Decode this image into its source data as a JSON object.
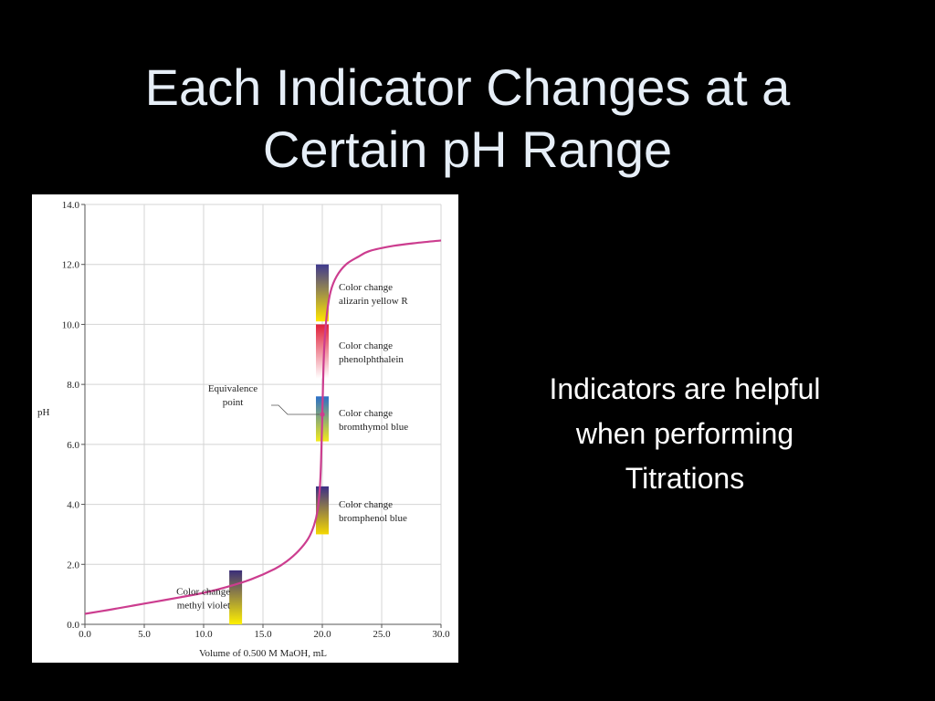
{
  "slide": {
    "title_line1": "Each Indicator Changes at a",
    "title_line2": "Certain pH Range",
    "caption_line1": "Indicators are helpful",
    "caption_line2": "when performing",
    "caption_line3": "Titrations",
    "background": "#000000",
    "title_color": "#e6eef7"
  },
  "chart_data": {
    "type": "line",
    "title": "",
    "xlabel": "Volume of 0.500 M MaOH, mL",
    "ylabel": "pH",
    "xlim": [
      0,
      30
    ],
    "ylim": [
      0,
      14
    ],
    "x_ticks": [
      "0.0",
      "5.0",
      "10.0",
      "15.0",
      "20.0",
      "25.0",
      "30.0"
    ],
    "y_ticks": [
      "0.0",
      "2.0",
      "4.0",
      "6.0",
      "8.0",
      "10.0",
      "12.0",
      "14.0"
    ],
    "grid": true,
    "curve_color": "#cc3d8f",
    "series": [
      {
        "x": [
          0,
          2,
          4,
          6,
          8,
          10,
          12,
          14,
          16,
          17,
          18,
          18.8,
          19.3,
          19.6,
          19.8,
          19.9,
          20.0,
          20.1,
          20.2,
          20.4,
          20.7,
          21.2,
          22,
          23,
          24,
          26,
          28,
          30
        ],
        "y": [
          0.35,
          0.48,
          0.62,
          0.76,
          0.9,
          1.05,
          1.25,
          1.5,
          1.85,
          2.1,
          2.45,
          2.85,
          3.3,
          3.8,
          4.6,
          5.5,
          7.0,
          8.6,
          9.5,
          10.4,
          11.1,
          11.6,
          12.0,
          12.25,
          12.45,
          12.62,
          12.72,
          12.8
        ]
      }
    ],
    "equivalence_point": {
      "x": 20.0,
      "y": 7.0,
      "label_line1": "Equivalence",
      "label_line2": "point"
    },
    "indicators": [
      {
        "label_line1": "Color change",
        "label_line2": "alizarin yellow R",
        "x": 20.0,
        "ph_low": 10.1,
        "ph_high": 12.0,
        "colors": [
          "#ffe600",
          "#3f3a8f"
        ]
      },
      {
        "label_line1": "Color change",
        "label_line2": "phenolphthalein",
        "x": 20.0,
        "ph_low": 8.2,
        "ph_high": 10.0,
        "colors": [
          "#ffffff",
          "#e0203a"
        ]
      },
      {
        "label_line1": "Color change",
        "label_line2": "bromthymol blue",
        "x": 20.0,
        "ph_low": 6.1,
        "ph_high": 7.6,
        "colors": [
          "#f2ea1c",
          "#2a6fc9"
        ]
      },
      {
        "label_line1": "Color change",
        "label_line2": "bromphenol blue",
        "x": 20.0,
        "ph_low": 3.0,
        "ph_high": 4.6,
        "colors": [
          "#f5d800",
          "#3b2f86"
        ]
      },
      {
        "label_line1": "Color change",
        "label_line2": "methyl violet",
        "x": 12.7,
        "ph_low": 0.0,
        "ph_high": 1.8,
        "colors": [
          "#fff000",
          "#3a2d7a"
        ]
      }
    ]
  }
}
